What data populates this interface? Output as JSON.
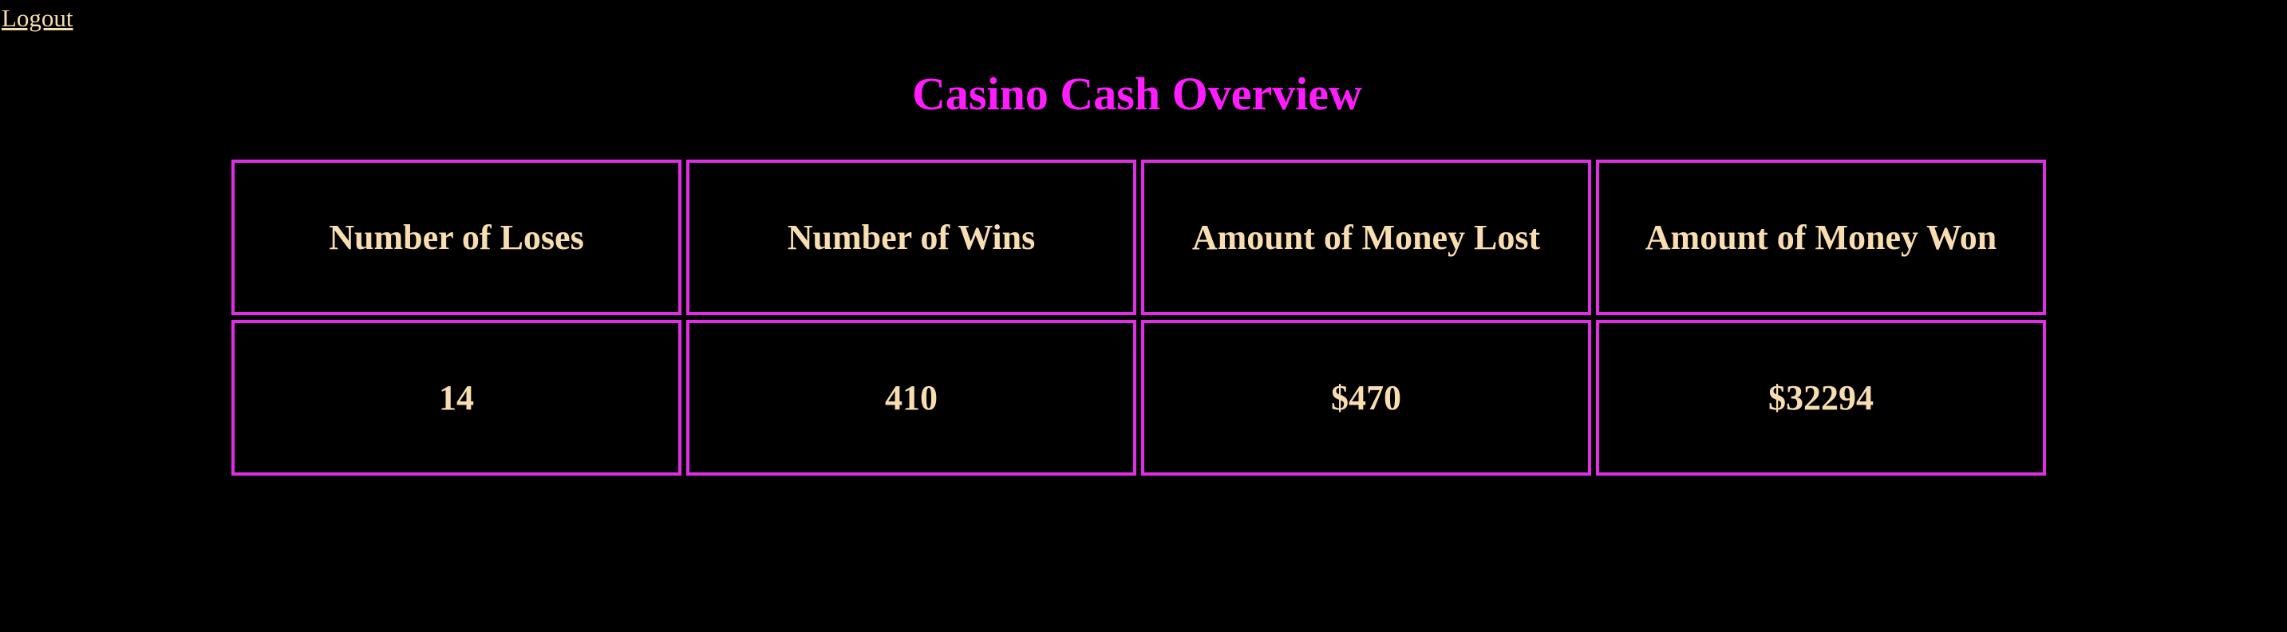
{
  "nav": {
    "logout_label": "Logout"
  },
  "page": {
    "title": "Casino Cash Overview"
  },
  "table": {
    "headers": [
      "Number of Loses",
      "Number of Wins",
      "Amount of Money Lost",
      "Amount of Money Won"
    ],
    "row": [
      "14",
      "410",
      "$470",
      "$32294"
    ]
  },
  "colors": {
    "background": "#000000",
    "title": "#ff1cff",
    "border": "#e12ee6",
    "text": "#f7ddb0"
  }
}
